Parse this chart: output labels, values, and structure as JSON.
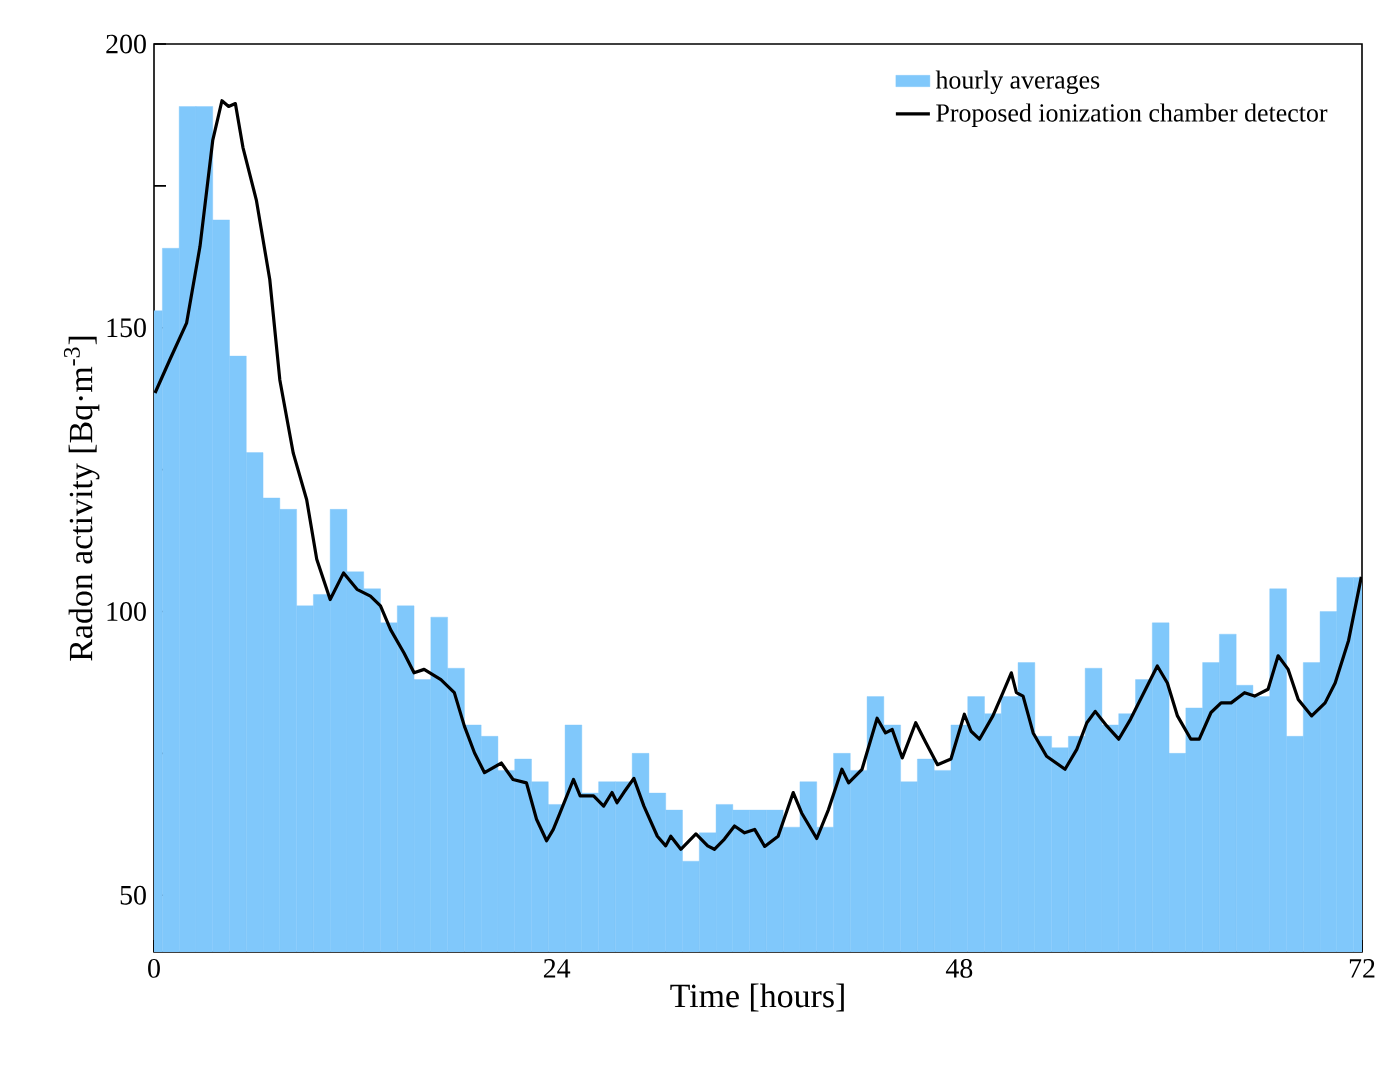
{
  "chart_data": {
    "type": "bar",
    "xlabel": "Time [hours]",
    "ylabel": "Radon activity [Bq·m$^{-3}$]",
    "xlim": [
      0,
      72
    ],
    "ylim": [
      40,
      200
    ],
    "xticks": [
      0,
      {
        "value": 3,
        "label": null
      },
      {
        "value": 6,
        "label": null
      },
      {
        "value": 9,
        "label": null
      },
      {
        "value": 12,
        "label": null
      },
      {
        "value": 15,
        "label": null
      },
      {
        "value": 18,
        "label": null
      },
      {
        "value": 21,
        "label": null
      },
      24,
      {
        "value": 27,
        "label": null
      },
      {
        "value": 30,
        "label": null
      },
      {
        "value": 33,
        "label": null
      },
      {
        "value": 36,
        "label": null
      },
      {
        "value": 39,
        "label": null
      },
      {
        "value": 42,
        "label": null
      },
      {
        "value": 45,
        "label": null
      },
      48,
      {
        "value": 51,
        "label": null
      },
      {
        "value": 54,
        "label": null
      },
      {
        "value": 57,
        "label": null
      },
      {
        "value": 60,
        "label": null
      },
      {
        "value": 63,
        "label": null
      },
      {
        "value": 66,
        "label": null
      },
      {
        "value": 69,
        "label": null
      },
      72
    ],
    "yticks": [
      50,
      {
        "value": 75,
        "label": null
      },
      100,
      {
        "value": 125,
        "label": null
      },
      150,
      {
        "value": 175,
        "label": null
      },
      200
    ],
    "legend": "top right",
    "series": [
      {
        "name": "hourly averages",
        "color": "#80c8fb",
        "x": [
          0,
          1,
          2,
          3,
          4,
          5,
          6,
          7,
          8,
          9,
          10,
          11,
          12,
          13,
          14,
          15,
          16,
          17,
          18,
          19,
          20,
          21,
          22,
          23,
          24,
          25,
          26,
          27,
          28,
          29,
          30,
          31,
          32,
          33,
          34,
          35,
          36,
          37,
          38,
          39,
          40,
          41,
          42,
          43,
          44,
          45,
          46,
          47,
          48,
          49,
          50,
          51,
          52,
          53,
          54,
          55,
          56,
          57,
          58,
          59,
          60,
          61,
          62,
          63,
          64,
          65,
          66,
          67,
          68,
          69,
          70,
          71,
          72
        ],
        "values": [
          153,
          164,
          189,
          189,
          169,
          145,
          128,
          120,
          118,
          101,
          103,
          118,
          107,
          104,
          98,
          101,
          88,
          99,
          90,
          80,
          78,
          72,
          74,
          70,
          66,
          80,
          68,
          70,
          70,
          75,
          68,
          65,
          56,
          61,
          66,
          65,
          65,
          65,
          62,
          70,
          62,
          75,
          72,
          85,
          80,
          70,
          74,
          72,
          80,
          85,
          82,
          85,
          91,
          78,
          76,
          78,
          90,
          80,
          82,
          88,
          98,
          75,
          83,
          91,
          96,
          87,
          85,
          104,
          78,
          91,
          100,
          106,
          106
        ]
      },
      {
        "name": "Proposed ionization chamber detector",
        "type": "line",
        "color": "#000000",
        "x": [
          0.06,
          0.95,
          1.94,
          2.74,
          3.5,
          4.05,
          4.45,
          4.85,
          5.3,
          6.1,
          6.9,
          7.5,
          8.3,
          9.1,
          9.7,
          10.5,
          11.3,
          12.1,
          12.9,
          13.5,
          14.1,
          14.9,
          15.5,
          16.1,
          17.1,
          17.9,
          18.5,
          19.1,
          19.7,
          20.7,
          21.4,
          22.2,
          22.8,
          23.4,
          23.8,
          24.2,
          25,
          25.4,
          26.2,
          26.8,
          27.3,
          27.6,
          28,
          28.6,
          29.2,
          30,
          30.5,
          30.8,
          31.4,
          32.3,
          33,
          33.4,
          34,
          34.6,
          35.2,
          35.8,
          36.4,
          37.2,
          38.1,
          38.6,
          39.5,
          40.2,
          41,
          41.4,
          42.2,
          43.1,
          43.6,
          44,
          44.6,
          45.4,
          46,
          46.7,
          47.5,
          48.3,
          48.7,
          49.2,
          50,
          50.6,
          51.1,
          51.4,
          51.8,
          52.4,
          53.2,
          54.3,
          55,
          55.6,
          56.1,
          56.8,
          57.5,
          58.2,
          59,
          59.8,
          60.4,
          61,
          61.8,
          62.3,
          63,
          63.6,
          64.2,
          65,
          65.6,
          66.4,
          67,
          67.6,
          68.2,
          69,
          69.8,
          70.4,
          71.2,
          71.96
        ],
        "values": [
          138.5,
          144.4,
          150.8,
          164.3,
          183,
          190,
          189,
          189.5,
          181.8,
          172.5,
          158.5,
          140.8,
          127.9,
          119.7,
          109.2,
          102.1,
          106.8,
          103.9,
          102.7,
          101,
          96.8,
          92.7,
          89.2,
          89.8,
          88,
          85.7,
          79.8,
          75.1,
          71.6,
          73.3,
          70.4,
          69.8,
          63.4,
          59.6,
          61.6,
          64.5,
          70.4,
          67.5,
          67.5,
          65.7,
          68.1,
          66.3,
          68.1,
          70.6,
          65.7,
          60.4,
          58.7,
          60.4,
          58.1,
          60.8,
          58.7,
          58.1,
          59.9,
          62.2,
          61,
          61.6,
          58.6,
          60.4,
          68.1,
          64.5,
          60,
          65.1,
          72.2,
          69.8,
          72.2,
          81.2,
          78.6,
          79.2,
          74.2,
          80.4,
          76.9,
          73,
          74,
          81.9,
          78.9,
          77.5,
          81.6,
          85.7,
          89.2,
          85.7,
          85.1,
          78.6,
          74.5,
          72.2,
          75.7,
          80.4,
          82.4,
          79.8,
          77.5,
          81,
          85.7,
          90.4,
          87.4,
          81.6,
          77.5,
          77.5,
          82.2,
          83.9,
          83.9,
          85.7,
          85.1,
          86.3,
          92.2,
          89.8,
          84.5,
          81.6,
          83.9,
          87.4,
          94.9,
          106.1
        ]
      }
    ]
  }
}
